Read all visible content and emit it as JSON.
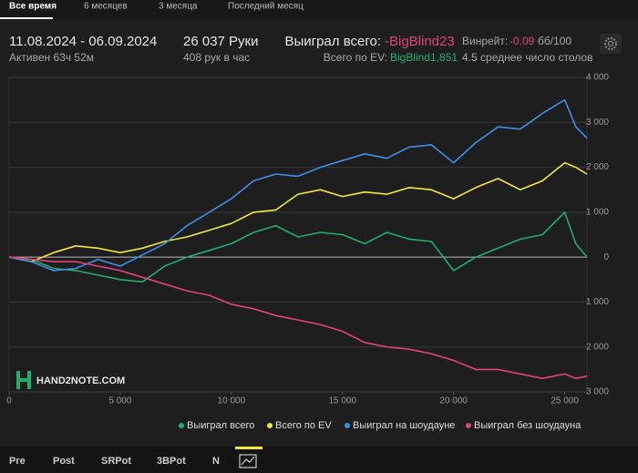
{
  "tabs": [
    "Все время",
    "6 месяцев",
    "3 месяца",
    "Последний месяц"
  ],
  "header": {
    "date_range": "11.08.2024 - 06.09.2024",
    "active": "Активен 63ч 52м",
    "hands": "26 037 Руки",
    "hands_per_hour": "408 рук в час",
    "won_label": "Выиграл всего:",
    "won_value": "-BigBlind23",
    "ev_label": "Всего по EV:",
    "ev_value": "BigBlind1,851",
    "winrate_label": "Винрейт:",
    "winrate_value": "-0.09",
    "winrate_unit": "бб/100",
    "tables": "4.5 среднее число столов"
  },
  "logo": "HAND2NOTE.COM",
  "bottom_tabs": [
    "Pre",
    "Post",
    "SRPot",
    "3BPot",
    "N"
  ],
  "chart_data": {
    "type": "line",
    "x": [
      0,
      1000,
      2000,
      3000,
      4000,
      5000,
      6000,
      7000,
      8000,
      9000,
      10000,
      11000,
      12000,
      13000,
      14000,
      15000,
      16000,
      17000,
      18000,
      19000,
      20000,
      21000,
      22000,
      23000,
      24000,
      25000,
      25500,
      26000
    ],
    "series": [
      {
        "name": "Выиграл всего",
        "color": "#1fae6c",
        "values": [
          0,
          -50,
          -250,
          -300,
          -400,
          -500,
          -550,
          -200,
          0,
          150,
          300,
          550,
          700,
          450,
          550,
          500,
          300,
          550,
          400,
          350,
          -300,
          0,
          200,
          400,
          500,
          1000,
          300,
          0
        ]
      },
      {
        "name": "Всего по EV",
        "color": "#efe83a",
        "values": [
          0,
          -100,
          100,
          250,
          200,
          100,
          200,
          350,
          450,
          600,
          750,
          1000,
          1050,
          1400,
          1500,
          1350,
          1450,
          1400,
          1550,
          1500,
          1300,
          1550,
          1750,
          1500,
          1700,
          2100,
          2000,
          1850
        ]
      },
      {
        "name": "Выиграл на шоудауне",
        "color": "#3f8ee6",
        "values": [
          0,
          -100,
          -300,
          -250,
          -50,
          -200,
          50,
          300,
          700,
          1000,
          1300,
          1700,
          1850,
          1800,
          2000,
          2150,
          2300,
          2200,
          2450,
          2500,
          2100,
          2550,
          2900,
          2850,
          3200,
          3500,
          2900,
          2650
        ]
      },
      {
        "name": "Выиграл без шоудауна",
        "color": "#e0447a",
        "values": [
          0,
          -50,
          -100,
          -100,
          -200,
          -300,
          -450,
          -600,
          -750,
          -850,
          -1050,
          -1150,
          -1300,
          -1400,
          -1500,
          -1650,
          -1900,
          -2000,
          -2050,
          -2150,
          -2300,
          -2500,
          -2500,
          -2600,
          -2700,
          -2600,
          -2700,
          -2650
        ]
      }
    ],
    "xlim": [
      0,
      26000
    ],
    "xticks": [
      0,
      {
        "value": 5000,
        "label": "5 000"
      },
      {
        "value": 10000,
        "label": "10 000"
      },
      {
        "value": 15000,
        "label": "15 000"
      },
      {
        "value": 20000,
        "label": "20 000"
      },
      {
        "value": 25000,
        "label": "25 000"
      }
    ],
    "ylim": [
      -3000,
      4000
    ],
    "yticks": [
      {
        "value": -3000,
        "label": "3 000"
      },
      {
        "value": -2000,
        "label": "2 000"
      },
      {
        "value": -1000,
        "label": "1 000"
      },
      0,
      {
        "value": 1000,
        "label": "1 000"
      },
      {
        "value": 2000,
        "label": "2 000"
      },
      {
        "value": 3000,
        "label": "3 000"
      },
      {
        "value": 4000,
        "label": "4 000"
      }
    ],
    "grid": true
  }
}
